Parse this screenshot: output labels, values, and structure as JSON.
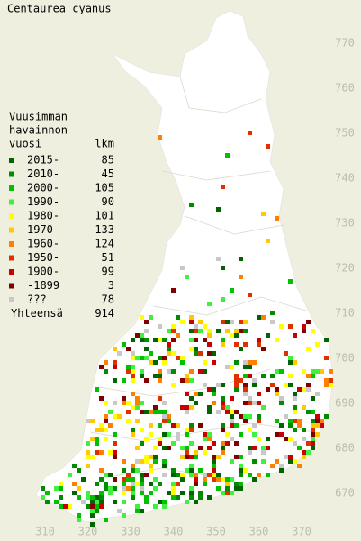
{
  "title": "Centaurea cyanus",
  "legend": {
    "heading": [
      "Vuusimman",
      "havainnon",
      "vuosi"
    ],
    "count_heading": "lkm",
    "rows": [
      {
        "label": "2015-",
        "count": 85,
        "color": "#006400"
      },
      {
        "label": "2010-",
        "count": 45,
        "color": "#008c00"
      },
      {
        "label": "2000-",
        "count": 105,
        "color": "#00c000"
      },
      {
        "label": "1990-",
        "count": 90,
        "color": "#40f040"
      },
      {
        "label": "1980-",
        "count": 101,
        "color": "#ffff00"
      },
      {
        "label": "1970-",
        "count": 133,
        "color": "#ffc800"
      },
      {
        "label": "1960-",
        "count": 124,
        "color": "#ff8000"
      },
      {
        "label": "1950-",
        "count": 51,
        "color": "#e03000"
      },
      {
        "label": "1900-",
        "count": 99,
        "color": "#c80000"
      },
      {
        "label": "-1899",
        "count": 3,
        "color": "#800000"
      },
      {
        "label": "???",
        "count": 78,
        "color": "#c8c8c8"
      }
    ],
    "total_label": "Yhteensä",
    "total": 914
  },
  "grid": {
    "x_labels": [
      310,
      320,
      330,
      340,
      350,
      360,
      370
    ],
    "y_labels": [
      770,
      760,
      750,
      740,
      730,
      720,
      710,
      700,
      690,
      680,
      670
    ]
  }
}
